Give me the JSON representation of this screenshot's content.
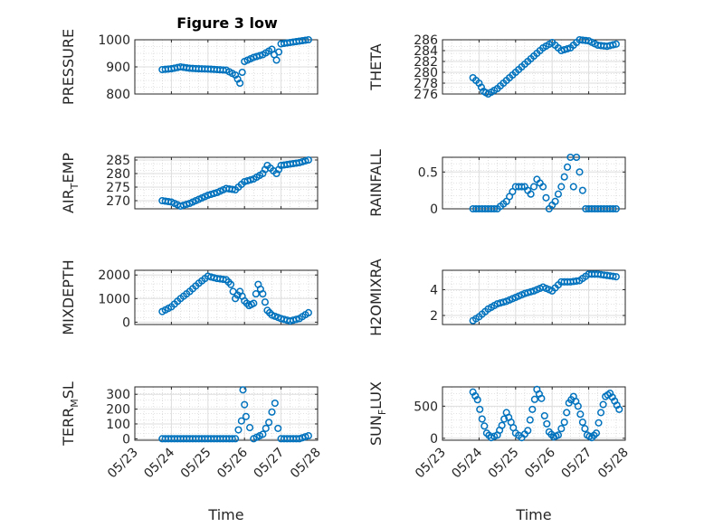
{
  "figure": {
    "title": "Figure 3 low",
    "xlabel": "Time",
    "x_ticks": [
      "05/23",
      "05/24",
      "05/25",
      "05/26",
      "05/27",
      "05/28"
    ],
    "marker_color": "#0072BD"
  },
  "chart_data": [
    {
      "type": "scatter",
      "ylabel_parts": [
        "PRESSURE"
      ],
      "ylim": [
        800,
        1000
      ],
      "yticks": [
        "800",
        "900",
        "1000"
      ],
      "ytick_values": [
        800,
        900,
        1000
      ],
      "x_range": [
        "05/23",
        "05/28"
      ],
      "x": [
        "05/23 18:00",
        "05/24 00:00",
        "05/24 06:00",
        "05/24 12:00",
        "05/24 18:00",
        "05/25 00:00",
        "05/25 06:00",
        "05/25 12:00",
        "05/25 18:00",
        "05/25 21:00",
        "05/26 00:00",
        "05/26 06:00",
        "05/26 12:00",
        "05/26 18:00",
        "05/26 21:00",
        "05/27 00:00",
        "05/27 06:00",
        "05/27 12:00",
        "05/27 18:00"
      ],
      "y": [
        890,
        893,
        900,
        895,
        893,
        892,
        890,
        888,
        870,
        840,
        920,
        935,
        945,
        965,
        925,
        985,
        990,
        995,
        1000
      ],
      "grid": true
    },
    {
      "type": "scatter",
      "ylabel_parts": [
        "THETA"
      ],
      "ylim": [
        276,
        286
      ],
      "yticks": [
        "276",
        "278",
        "280",
        "282",
        "284",
        "286"
      ],
      "ytick_values": [
        276,
        278,
        280,
        282,
        284,
        286
      ],
      "x_range": [
        "05/23",
        "05/28"
      ],
      "x": [
        "05/23 20:00",
        "05/24 00:00",
        "05/24 03:00",
        "05/24 06:00",
        "05/24 12:00",
        "05/24 18:00",
        "05/25 00:00",
        "05/25 06:00",
        "05/25 12:00",
        "05/25 18:00",
        "05/26 00:00",
        "05/26 06:00",
        "05/26 12:00",
        "05/26 18:00",
        "05/27 00:00",
        "05/27 06:00",
        "05/27 12:00",
        "05/27 18:00"
      ],
      "y": [
        279,
        278,
        276.5,
        276,
        277,
        278.5,
        280,
        281.5,
        283,
        284.5,
        285.5,
        284,
        284.5,
        286,
        285.8,
        285,
        284.8,
        285.2
      ],
      "grid": true
    },
    {
      "type": "scatter",
      "ylabel_parts": [
        "AIR",
        "T",
        "EMP"
      ],
      "ylim": [
        267,
        286
      ],
      "yticks": [
        "270",
        "275",
        "280",
        "285"
      ],
      "ytick_values": [
        270,
        275,
        280,
        285
      ],
      "x_range": [
        "05/23",
        "05/28"
      ],
      "x": [
        "05/23 18:00",
        "05/24 00:00",
        "05/24 06:00",
        "05/24 12:00",
        "05/24 18:00",
        "05/25 00:00",
        "05/25 06:00",
        "05/25 12:00",
        "05/25 18:00",
        "05/26 00:00",
        "05/26 06:00",
        "05/26 12:00",
        "05/26 15:00",
        "05/26 21:00",
        "05/27 00:00",
        "05/27 06:00",
        "05/27 12:00",
        "05/27 18:00"
      ],
      "y": [
        270,
        269.5,
        268,
        269,
        270.5,
        272,
        273,
        274.5,
        274,
        277,
        278,
        280,
        283,
        280,
        283,
        283.5,
        284,
        285
      ],
      "grid": true
    },
    {
      "type": "scatter",
      "ylabel_parts": [
        "RAINFALL"
      ],
      "ylim": [
        0,
        0.7
      ],
      "yticks": [
        "0",
        "0.5"
      ],
      "ytick_values": [
        0,
        0.5
      ],
      "x_range": [
        "05/23",
        "05/28"
      ],
      "x": [
        "05/23 20:00",
        "05/24 06:00",
        "05/24 12:00",
        "05/24 18:00",
        "05/25 00:00",
        "05/25 06:00",
        "05/25 10:00",
        "05/25 14:00",
        "05/25 18:00",
        "05/25 22:00",
        "05/26 02:00",
        "05/26 06:00",
        "05/26 12:00",
        "05/26 14:00",
        "05/26 16:00",
        "05/26 18:00",
        "05/26 22:00",
        "05/27 06:00",
        "05/27 18:00"
      ],
      "y": [
        0,
        0,
        0,
        0.1,
        0.3,
        0.3,
        0.2,
        0.4,
        0.3,
        0,
        0.1,
        0.3,
        0.7,
        0.3,
        0.7,
        0.5,
        0,
        0,
        0
      ],
      "grid": true
    },
    {
      "type": "scatter",
      "ylabel_parts": [
        "MIXDEPTH"
      ],
      "ylim": [
        -100,
        2200
      ],
      "yticks": [
        "0",
        "1000",
        "2000"
      ],
      "ytick_values": [
        0,
        1000,
        2000
      ],
      "x_range": [
        "05/23",
        "05/28"
      ],
      "x": [
        "05/23 18:00",
        "05/24 00:00",
        "05/24 06:00",
        "05/24 12:00",
        "05/24 18:00",
        "05/25 00:00",
        "05/25 06:00",
        "05/25 12:00",
        "05/25 15:00",
        "05/25 18:00",
        "05/25 21:00",
        "05/26 00:00",
        "05/26 03:00",
        "05/26 06:00",
        "05/26 09:00",
        "05/26 12:00",
        "05/26 15:00",
        "05/26 18:00",
        "05/27 00:00",
        "05/27 06:00",
        "05/27 12:00",
        "05/27 18:00"
      ],
      "y": [
        450,
        650,
        1000,
        1300,
        1650,
        1950,
        1850,
        1800,
        1600,
        1000,
        1300,
        900,
        700,
        800,
        1600,
        1200,
        500,
        300,
        150,
        50,
        150,
        400
      ],
      "grid": true
    },
    {
      "type": "scatter",
      "ylabel_parts": [
        "H2OMIXRA"
      ],
      "ylim": [
        1.3,
        5.5
      ],
      "yticks": [
        "2",
        "4"
      ],
      "ytick_values": [
        2,
        4
      ],
      "x_range": [
        "05/23",
        "05/28"
      ],
      "x": [
        "05/23 20:00",
        "05/24 00:00",
        "05/24 06:00",
        "05/24 12:00",
        "05/24 18:00",
        "05/25 00:00",
        "05/25 06:00",
        "05/25 12:00",
        "05/25 18:00",
        "05/26 00:00",
        "05/26 06:00",
        "05/26 12:00",
        "05/26 18:00",
        "05/27 00:00",
        "05/27 06:00",
        "05/27 12:00",
        "05/27 18:00"
      ],
      "y": [
        1.6,
        1.9,
        2.5,
        2.9,
        3.1,
        3.4,
        3.7,
        3.9,
        4.2,
        3.9,
        4.6,
        4.6,
        4.7,
        5.2,
        5.2,
        5.1,
        5.0
      ],
      "grid": true
    },
    {
      "type": "scatter",
      "ylabel_parts": [
        "TERR",
        "M",
        "SL"
      ],
      "ylim": [
        -10,
        350
      ],
      "yticks": [
        "0",
        "100",
        "200",
        "300"
      ],
      "ytick_values": [
        0,
        100,
        200,
        300
      ],
      "x_range": [
        "05/23",
        "05/28"
      ],
      "x": [
        "05/23 18:00",
        "05/24 06:00",
        "05/24 18:00",
        "05/25 06:00",
        "05/25 18:00",
        "05/25 22:00",
        "05/25 23:00",
        "05/26 00:00",
        "05/26 01:00",
        "05/26 06:00",
        "05/26 12:00",
        "05/26 16:00",
        "05/26 18:00",
        "05/26 20:00",
        "05/26 22:00",
        "05/27 00:00",
        "05/27 06:00",
        "05/27 12:00",
        "05/27 18:00"
      ],
      "y": [
        0,
        0,
        0,
        0,
        0,
        120,
        330,
        230,
        150,
        0,
        30,
        110,
        180,
        240,
        70,
        0,
        0,
        0,
        20
      ],
      "grid": true
    },
    {
      "type": "scatter",
      "ylabel_parts": [
        "SUN",
        "F",
        "LUX"
      ],
      "ylim": [
        -30,
        800
      ],
      "yticks": [
        "0",
        "500"
      ],
      "ytick_values": [
        0,
        500
      ],
      "x_range": [
        "05/23",
        "05/28"
      ],
      "x": [
        "05/23 20:00",
        "05/23 23:00",
        "05/24 02:00",
        "05/24 05:00",
        "05/24 08:00",
        "05/24 12:00",
        "05/24 15:00",
        "05/24 18:00",
        "05/24 21:00",
        "05/25 00:00",
        "05/25 04:00",
        "05/25 08:00",
        "05/25 11:00",
        "05/25 14:00",
        "05/25 17:00",
        "05/25 19:00",
        "05/25 22:00",
        "05/26 01:00",
        "05/26 04:00",
        "05/26 08:00",
        "05/26 11:00",
        "05/26 14:00",
        "05/26 17:00",
        "05/26 20:00",
        "05/26 23:00",
        "05/27 02:00",
        "05/27 05:00",
        "05/27 08:00",
        "05/27 11:00",
        "05/27 14:00",
        "05/27 17:00",
        "05/27 20:00"
      ],
      "y": [
        720,
        600,
        300,
        80,
        10,
        50,
        200,
        400,
        250,
        80,
        10,
        120,
        450,
        760,
        620,
        350,
        100,
        20,
        50,
        250,
        550,
        650,
        500,
        250,
        50,
        10,
        80,
        400,
        650,
        700,
        580,
        450
      ],
      "grid": true
    }
  ]
}
